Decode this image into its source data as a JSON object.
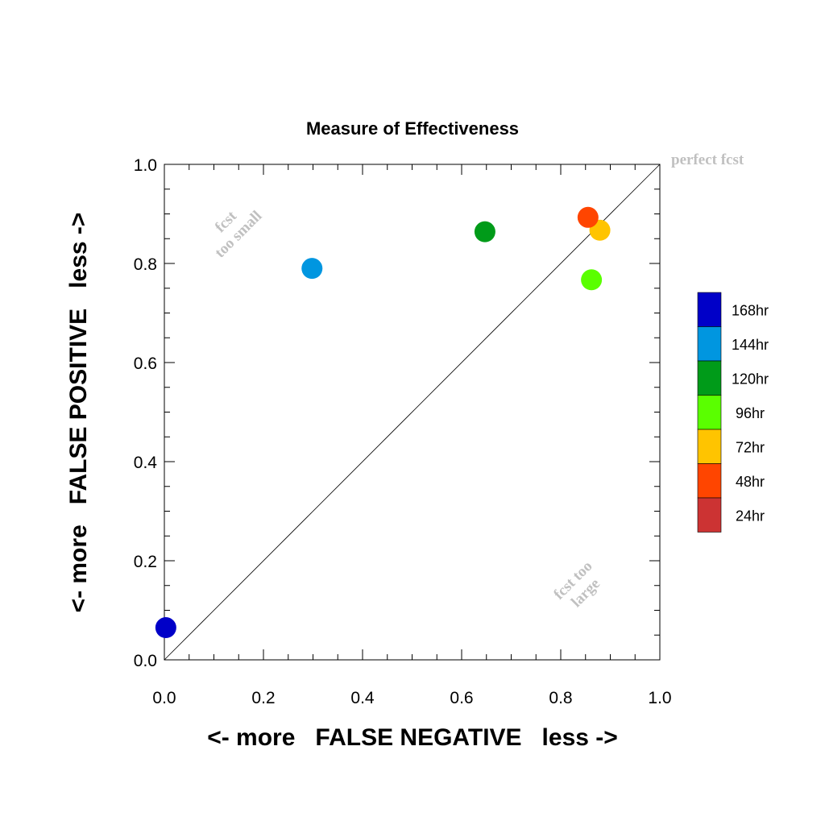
{
  "chart_data": {
    "type": "scatter",
    "title": "Measure of Effectiveness",
    "xlabel": "<- more   FALSE NEGATIVE   less ->",
    "ylabel": "<- more   FALSE POSITIVE   less ->",
    "xlim": [
      0,
      1
    ],
    "ylim": [
      0,
      1
    ],
    "xticks": [
      "0.0",
      "0.2",
      "0.4",
      "0.6",
      "0.8",
      "1.0"
    ],
    "yticks": [
      "0.0",
      "0.2",
      "0.4",
      "0.6",
      "0.8",
      "1.0"
    ],
    "grid": false,
    "diagonal_line": true,
    "legend_position": "right",
    "annotations": {
      "perfect": "perfect fcst",
      "too_small_1": "fcst",
      "too_small_2": "too small",
      "too_large_1": "fcst too",
      "too_large_2": "large"
    },
    "series": [
      {
        "name": "168hr",
        "color": "#0000c8",
        "x": 0.003,
        "y": 0.065
      },
      {
        "name": "144hr",
        "color": "#0096e0",
        "x": 0.298,
        "y": 0.79
      },
      {
        "name": "120hr",
        "color": "#009b19",
        "x": 0.647,
        "y": 0.864
      },
      {
        "name": "96hr",
        "color": "#5aff00",
        "x": 0.862,
        "y": 0.767
      },
      {
        "name": "72hr",
        "color": "#ffc400",
        "x": 0.879,
        "y": 0.867
      },
      {
        "name": "48hr",
        "color": "#ff4500",
        "x": 0.855,
        "y": 0.893
      },
      {
        "name": "24hr",
        "color": "#cc3333",
        "x": null,
        "y": null
      }
    ]
  }
}
